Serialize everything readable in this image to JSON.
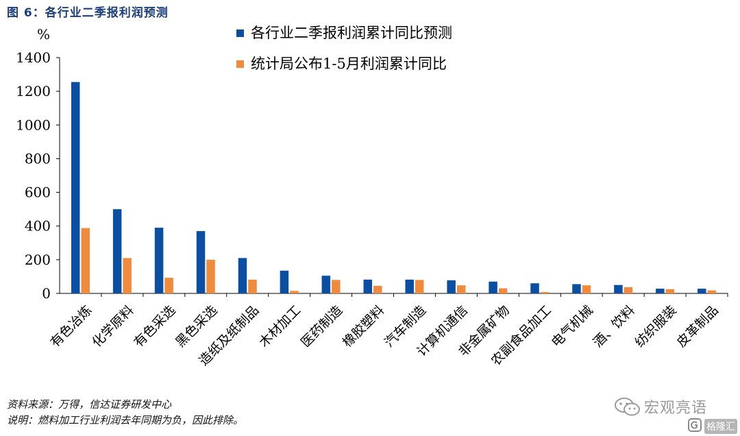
{
  "figure_title": "图 6：各行业二季报利润预测",
  "notes": {
    "source": "资料来源：万得，信达证券研发中心",
    "explain": "说明：燃料加工行业利润去年同期为负，因此排除。"
  },
  "watermark": {
    "wechat_text": "宏观亮语",
    "site_text": "格隆汇",
    "icon": "wechat-icon"
  },
  "colors": {
    "series1": "#0b4fa3",
    "series2": "#f08a3c",
    "title": "#1c3e7a"
  },
  "chart_data": {
    "type": "bar",
    "ylabel": "%",
    "ylim": [
      0,
      1400
    ],
    "yticks": [
      0,
      200,
      400,
      600,
      800,
      1000,
      1200,
      1400
    ],
    "grid": false,
    "legend_position": "top-right",
    "categories": [
      "有色冶炼",
      "化学原料",
      "有色采选",
      "黑色采选",
      "造纸及纸制品",
      "木材加工",
      "医药制造",
      "橡胶塑料",
      "汽车制造",
      "计算机通信",
      "非金属矿物",
      "农副食品加工",
      "电气机械",
      "酒、饮料",
      "纺织服装",
      "皮革制品"
    ],
    "series": [
      {
        "name": "各行业二季报利润累计同比预测",
        "values": [
          1255,
          500,
          390,
          370,
          210,
          135,
          105,
          82,
          82,
          78,
          70,
          60,
          55,
          50,
          28,
          28
        ]
      },
      {
        "name": "统计局公布1-5月利润累计同比",
        "values": [
          388,
          210,
          93,
          200,
          82,
          15,
          80,
          45,
          80,
          48,
          30,
          8,
          48,
          37,
          25,
          18
        ]
      }
    ]
  }
}
